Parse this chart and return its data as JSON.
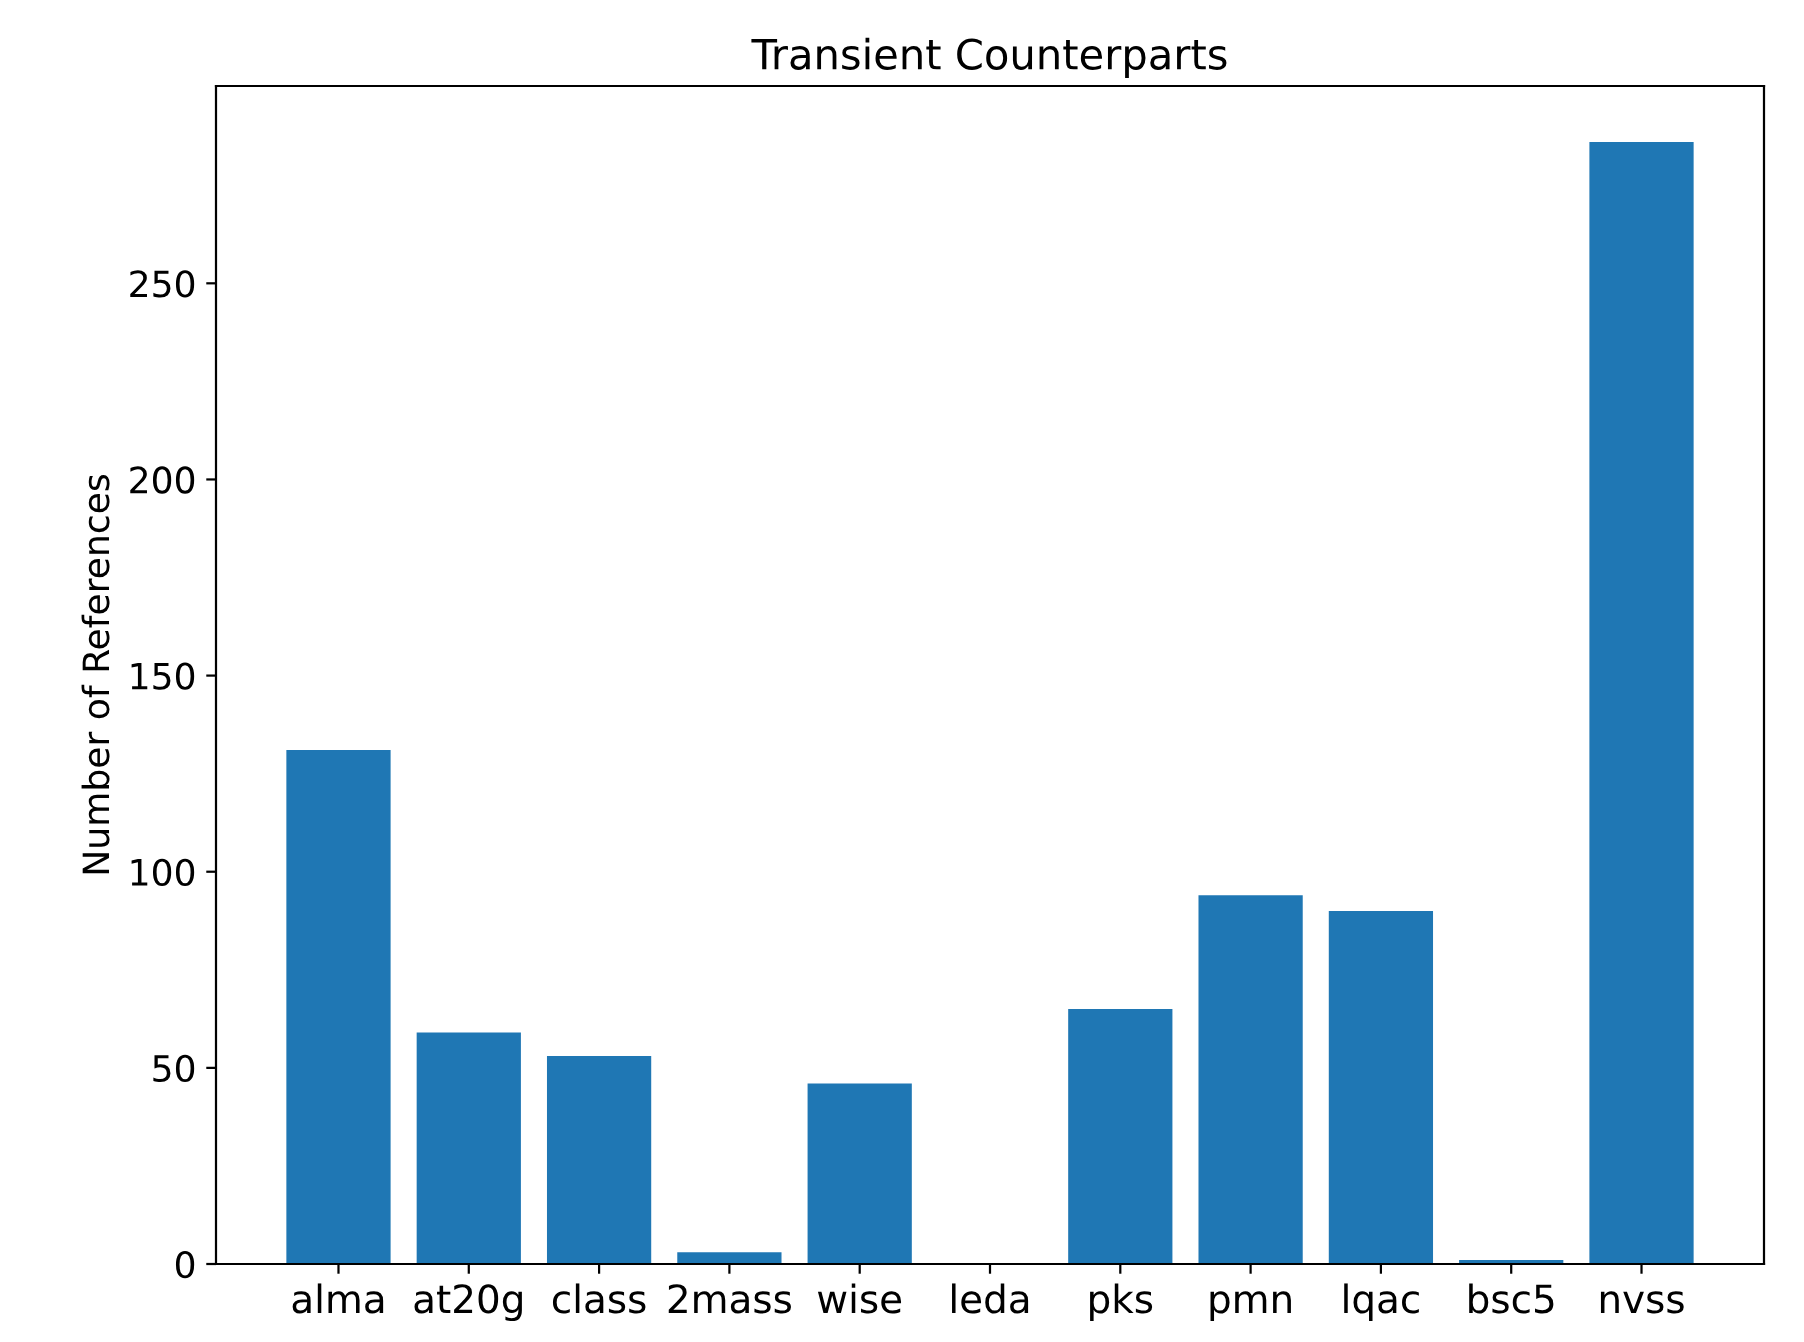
{
  "chart_data": {
    "type": "bar",
    "title": "Transient Counterparts",
    "ylabel": "Number of References",
    "categories": [
      "alma",
      "at20g",
      "class",
      "2mass",
      "wise",
      "leda",
      "pks",
      "pmn",
      "lqac",
      "bsc5",
      "nvss"
    ],
    "values": [
      131,
      59,
      53,
      3,
      46,
      0,
      65,
      94,
      90,
      1,
      286
    ],
    "color": "#1f77b4",
    "ylim": [
      0,
      300.3
    ],
    "yticks": [
      0,
      50,
      100,
      150,
      200,
      250
    ],
    "grid": false
  }
}
